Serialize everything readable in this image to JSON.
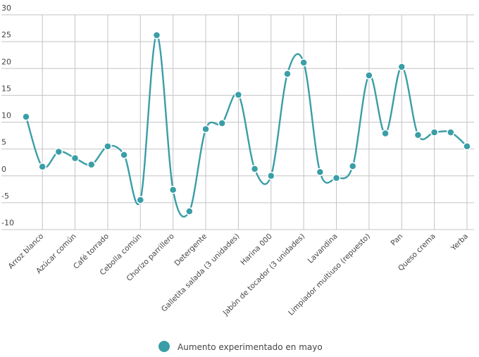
{
  "chart_data": {
    "type": "line",
    "title": "",
    "xlabel": "",
    "ylabel": "",
    "ylim": [
      -10,
      30
    ],
    "yticks": [
      -10,
      -5,
      0,
      5,
      10,
      15,
      20,
      25,
      30
    ],
    "grid": true,
    "legend_position": "bottom-center",
    "categories": [
      "",
      "Arroz blanco",
      "",
      "Azúcar común",
      "",
      "Café torrado",
      "",
      "Cebolla común",
      "",
      "Chorizo parrillero",
      "",
      "Detergente",
      "",
      "Galletita salada (3 unidades)",
      "",
      "Harina 000",
      "",
      "Jabón de tocador (3 unidades)",
      "",
      "Lavandina",
      "",
      "Limpiador multiuso (repuesto)",
      "",
      "Pan",
      "",
      "Queso crema",
      "",
      "Yerba"
    ],
    "series": [
      {
        "name": "Aumento experimentado en mayo",
        "color": "#3a9ea6",
        "values": [
          11.0,
          1.7,
          4.5,
          3.3,
          2.1,
          5.5,
          3.9,
          -4.5,
          26.2,
          -2.6,
          -6.6,
          8.7,
          9.8,
          15.1,
          1.3,
          0.0,
          19.0,
          21.1,
          0.7,
          -0.4,
          1.8,
          18.7,
          7.9,
          20.3,
          7.6,
          8.1,
          8.1,
          5.5
        ]
      }
    ]
  }
}
